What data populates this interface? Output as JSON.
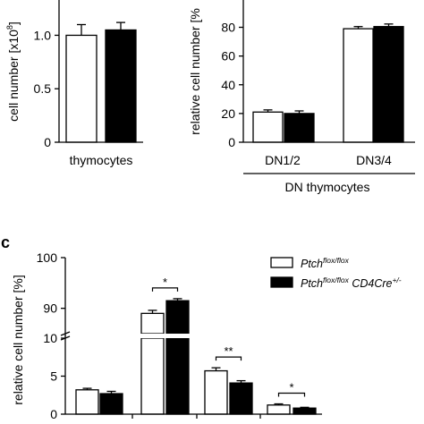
{
  "colors": {
    "control": "#ffffff",
    "mutant": "#000000",
    "axis": "#000000"
  },
  "panel_letter": "c",
  "legend": {
    "items": [
      {
        "gene": "Ptch",
        "sup": "flox/flox",
        "rest": "",
        "rest_sup": "",
        "color": "#ffffff"
      },
      {
        "gene": "Ptch",
        "sup": "flox/flox",
        "rest": " CD4Cre",
        "rest_sup": "+/-",
        "color": "#000000"
      }
    ]
  },
  "chart_data": [
    {
      "type": "bar",
      "ylabel": "cell number [x10",
      "ylabel_sup": "8",
      "ylabel_close": "]",
      "yticks": [
        "0",
        "0.5",
        "1.0"
      ],
      "ylim": [
        0,
        1.33
      ],
      "categories": [
        "thymocytes"
      ],
      "series": [
        {
          "color": "#ffffff",
          "values": [
            1.0
          ],
          "errors": [
            0.1
          ]
        },
        {
          "color": "#000000",
          "values": [
            1.05
          ],
          "errors": [
            0.07
          ]
        }
      ]
    },
    {
      "type": "bar",
      "ylabel": "relative cell number [%",
      "yticks": [
        "0",
        "20",
        "40",
        "60",
        "80"
      ],
      "ylim": [
        0,
        99
      ],
      "categories": [
        "DN1/2",
        "DN3/4"
      ],
      "xgroup_label": "DN thymocytes",
      "series": [
        {
          "color": "#ffffff",
          "values": [
            21,
            79
          ],
          "errors": [
            1.5,
            1.5
          ]
        },
        {
          "color": "#000000",
          "values": [
            20,
            80.5
          ],
          "errors": [
            1.8,
            1.8
          ]
        }
      ]
    },
    {
      "type": "bar",
      "ylabel": "relative cell number [%]",
      "ylim": [
        0,
        100
      ],
      "axis_break": [
        10,
        85
      ],
      "yticks": [
        "0",
        "5",
        "10",
        "90",
        "100"
      ],
      "categories": [
        "",
        "",
        "",
        ""
      ],
      "series": [
        {
          "color": "#ffffff",
          "values": [
            3.2,
            89,
            5.7,
            1.2
          ],
          "errors": [
            0.2,
            0.6,
            0.4,
            0.15
          ]
        },
        {
          "color": "#000000",
          "values": [
            2.7,
            91.5,
            4.1,
            0.8
          ],
          "errors": [
            0.3,
            0.4,
            0.3,
            0.1
          ]
        }
      ],
      "significance": [
        "",
        "*",
        "**",
        "*"
      ]
    }
  ]
}
